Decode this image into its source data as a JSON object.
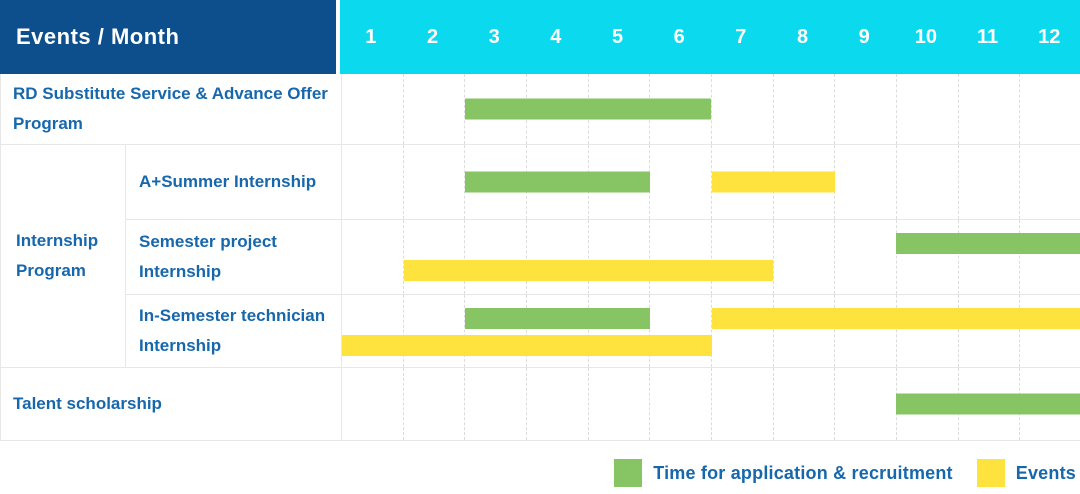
{
  "header": {
    "title": "Events / Month",
    "months": [
      "1",
      "2",
      "3",
      "4",
      "5",
      "6",
      "7",
      "8",
      "9",
      "10",
      "11",
      "12"
    ]
  },
  "rows": [
    {
      "label": "RD Substitute Service & Advance Offer Program",
      "group": "",
      "bars": [
        {
          "type": "application",
          "start": 3,
          "end": 6,
          "line": "center"
        }
      ]
    },
    {
      "label": "A+Summer Internship",
      "group": "Internship Program",
      "bars": [
        {
          "type": "application",
          "start": 3,
          "end": 5,
          "line": "center"
        },
        {
          "type": "event",
          "start": 7,
          "end": 8,
          "line": "center"
        }
      ]
    },
    {
      "label": "Semester project Internship",
      "group": "Internship Program",
      "bars": [
        {
          "type": "application",
          "start": 10,
          "end": 12,
          "line": "top"
        },
        {
          "type": "event",
          "start": 2,
          "end": 7,
          "line": "bottom"
        }
      ]
    },
    {
      "label": "In-Semester technician Internship",
      "group": "Internship Program",
      "bars": [
        {
          "type": "application",
          "start": 3,
          "end": 5,
          "line": "top"
        },
        {
          "type": "event",
          "start": 7,
          "end": 12,
          "line": "top"
        },
        {
          "type": "event",
          "start": 1,
          "end": 6,
          "line": "bottom"
        }
      ]
    },
    {
      "label": "Talent scholarship",
      "group": "",
      "bars": [
        {
          "type": "application",
          "start": 10,
          "end": 12,
          "line": "center"
        }
      ]
    }
  ],
  "legend": [
    {
      "type": "application",
      "label": "Time for application & recruitment",
      "color": "#87c564"
    },
    {
      "type": "event",
      "label": "Events",
      "color": "#fee23d"
    }
  ],
  "colors": {
    "header_bg": "#0d4e8d",
    "months_bg": "#0bd9ed",
    "application": "#87c564",
    "event": "#fee23d",
    "text": "#1767ac",
    "grid": "#e7e7e7"
  },
  "chart_data": {
    "type": "table",
    "title": "Events / Month",
    "x_axis": {
      "label": "Month",
      "ticks": [
        1,
        2,
        3,
        4,
        5,
        6,
        7,
        8,
        9,
        10,
        11,
        12
      ]
    },
    "legend": [
      "Time for application & recruitment",
      "Events"
    ],
    "rows": [
      {
        "group": "",
        "event": "RD Substitute Service & Advance Offer Program",
        "time_for_application_recruitment_months": [
          [
            3,
            6
          ]
        ],
        "events_months": []
      },
      {
        "group": "Internship Program",
        "event": "A+Summer Internship",
        "time_for_application_recruitment_months": [
          [
            3,
            5
          ]
        ],
        "events_months": [
          [
            7,
            8
          ]
        ]
      },
      {
        "group": "Internship Program",
        "event": "Semester project Internship",
        "time_for_application_recruitment_months": [
          [
            10,
            12
          ]
        ],
        "events_months": [
          [
            2,
            7
          ]
        ]
      },
      {
        "group": "Internship Program",
        "event": "In-Semester technician Internship",
        "time_for_application_recruitment_months": [
          [
            3,
            5
          ]
        ],
        "events_months": [
          [
            1,
            6
          ],
          [
            7,
            12
          ]
        ]
      },
      {
        "group": "",
        "event": "Talent scholarship",
        "time_for_application_recruitment_months": [
          [
            10,
            12
          ]
        ],
        "events_months": []
      }
    ]
  }
}
